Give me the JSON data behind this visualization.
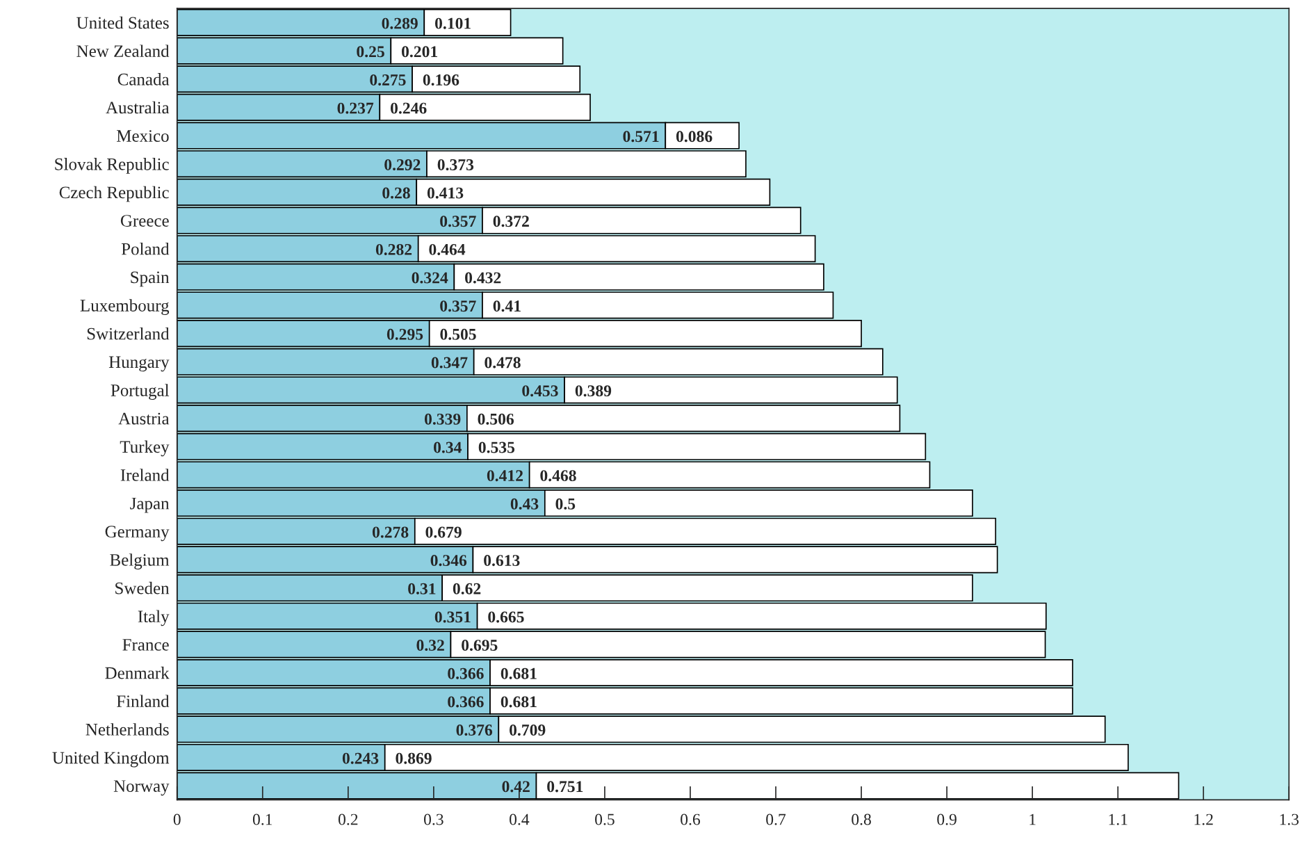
{
  "chart_data": {
    "type": "bar",
    "orientation": "horizontal",
    "stacked": true,
    "data_labels": true,
    "grid": false,
    "legend": false,
    "categories": [
      "United States",
      "New Zealand",
      "Canada",
      "Australia",
      "Mexico",
      "Slovak Republic",
      "Czech Republic",
      "Greece",
      "Poland",
      "Spain",
      "Luxembourg",
      "Switzerland",
      "Hungary",
      "Portugal",
      "Austria",
      "Turkey",
      "Ireland",
      "Japan",
      "Germany",
      "Belgium",
      "Sweden",
      "Italy",
      "France",
      "Denmark",
      "Finland",
      "Netherlands",
      "United Kingdom",
      "Norway"
    ],
    "series": [
      {
        "color": "#8ecfe0",
        "values": [
          0.289,
          0.25,
          0.275,
          0.237,
          0.571,
          0.292,
          0.28,
          0.357,
          0.282,
          0.324,
          0.357,
          0.295,
          0.347,
          0.453,
          0.339,
          0.34,
          0.412,
          0.43,
          0.278,
          0.346,
          0.31,
          0.351,
          0.32,
          0.366,
          0.366,
          0.376,
          0.243,
          0.42
        ]
      },
      {
        "color": "#ffffff",
        "values": [
          0.101,
          0.201,
          0.196,
          0.246,
          0.086,
          0.373,
          0.413,
          0.372,
          0.464,
          0.432,
          0.41,
          0.505,
          0.478,
          0.389,
          0.506,
          0.535,
          0.468,
          0.5,
          0.679,
          0.613,
          0.62,
          0.665,
          0.695,
          0.681,
          0.681,
          0.709,
          0.869,
          0.751
        ]
      }
    ],
    "xlim": [
      0,
      1.3
    ],
    "xticks": [
      0,
      0.1,
      0.2,
      0.3,
      0.4,
      0.5,
      0.6,
      0.7,
      0.8,
      0.9,
      1,
      1.1,
      1.2,
      1.3
    ]
  }
}
